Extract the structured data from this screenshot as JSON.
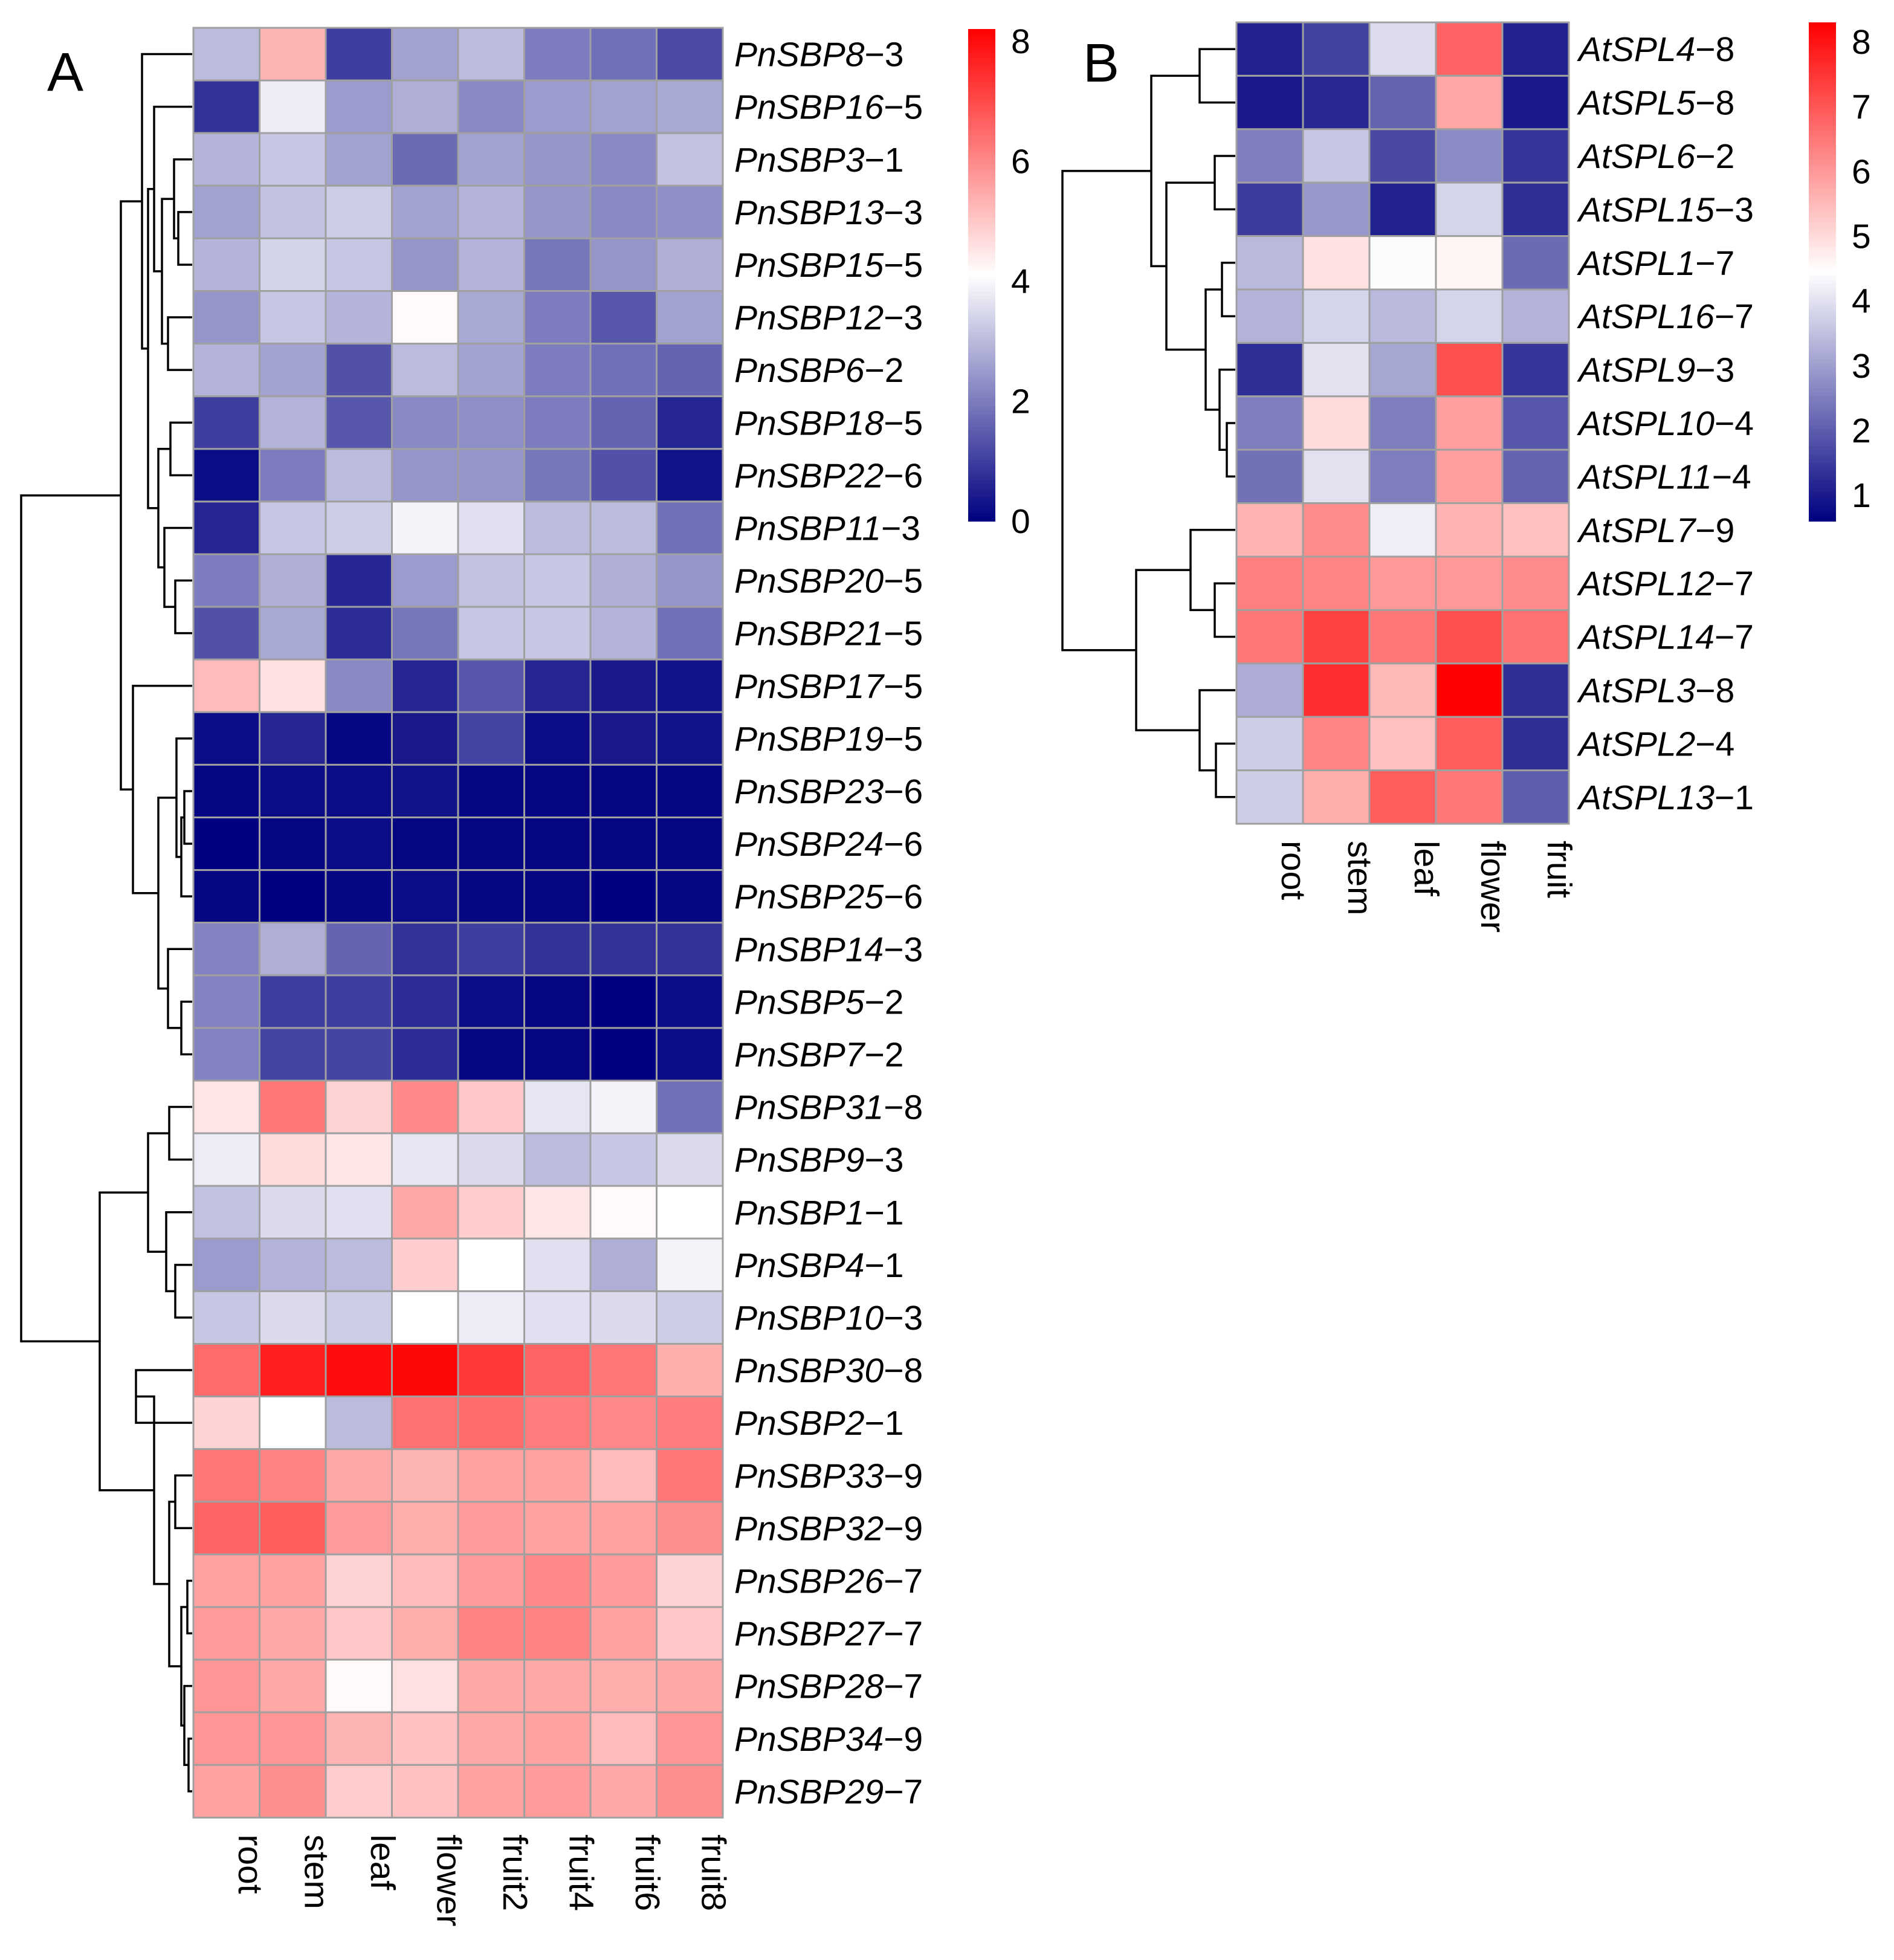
{
  "colors": {
    "low": "#000080",
    "mid": "#ffffff",
    "high": "#ff0000",
    "grid": "#a0a0a0",
    "tree": "#000000"
  },
  "chart_data": [
    {
      "panel": "A",
      "type": "heatmap",
      "columns": [
        "root",
        "stem",
        "leaf",
        "flower",
        "fruit2",
        "fruit4",
        "fruit6",
        "fruit8"
      ],
      "rows": [
        {
          "gene": "PnSBP8",
          "suffix": "−3",
          "values": [
            3.0,
            5.3,
            1.0,
            2.6,
            3.0,
            2.0,
            1.8,
            1.2
          ]
        },
        {
          "gene": "PnSBP16",
          "suffix": "−5",
          "values": [
            0.8,
            3.8,
            2.5,
            2.8,
            2.2,
            2.5,
            2.6,
            2.7
          ]
        },
        {
          "gene": "PnSBP3",
          "suffix": "−1",
          "values": [
            2.9,
            3.2,
            2.6,
            1.7,
            2.6,
            2.4,
            2.2,
            3.1
          ]
        },
        {
          "gene": "PnSBP13",
          "suffix": "−3",
          "values": [
            2.6,
            3.1,
            3.3,
            2.6,
            2.9,
            2.4,
            2.2,
            2.3
          ]
        },
        {
          "gene": "PnSBP15",
          "suffix": "−5",
          "values": [
            2.9,
            3.4,
            3.2,
            2.4,
            2.9,
            1.9,
            2.4,
            2.8
          ]
        },
        {
          "gene": "PnSBP12",
          "suffix": "−3",
          "values": [
            2.4,
            3.2,
            2.9,
            4.2,
            2.7,
            2.0,
            1.4,
            2.6
          ]
        },
        {
          "gene": "PnSBP6",
          "suffix": "−2",
          "values": [
            2.9,
            2.6,
            1.3,
            3.0,
            2.6,
            2.0,
            1.8,
            1.6
          ]
        },
        {
          "gene": "PnSBP18",
          "suffix": "−5",
          "values": [
            1.0,
            2.9,
            1.4,
            2.2,
            2.3,
            2.0,
            1.6,
            0.6
          ]
        },
        {
          "gene": "PnSBP22",
          "suffix": "−6",
          "values": [
            0.2,
            2.0,
            3.0,
            2.4,
            2.4,
            1.9,
            1.3,
            0.3
          ]
        },
        {
          "gene": "PnSBP11",
          "suffix": "−3",
          "values": [
            0.6,
            3.2,
            3.3,
            3.9,
            3.6,
            3.0,
            3.0,
            1.8
          ]
        },
        {
          "gene": "PnSBP20",
          "suffix": "−5",
          "values": [
            2.0,
            2.8,
            0.6,
            2.5,
            3.1,
            3.2,
            2.8,
            2.4
          ]
        },
        {
          "gene": "PnSBP21",
          "suffix": "−5",
          "values": [
            1.3,
            2.7,
            0.7,
            1.9,
            3.2,
            3.2,
            2.9,
            1.8
          ]
        },
        {
          "gene": "PnSBP17",
          "suffix": "−5",
          "values": [
            5.2,
            4.6,
            2.2,
            0.6,
            1.4,
            0.6,
            0.4,
            0.3
          ]
        },
        {
          "gene": "PnSBP19",
          "suffix": "−5",
          "values": [
            0.2,
            0.6,
            0.1,
            0.4,
            1.1,
            0.2,
            0.4,
            0.3
          ]
        },
        {
          "gene": "PnSBP23",
          "suffix": "−6",
          "values": [
            0.1,
            0.2,
            0.2,
            0.3,
            0.1,
            0.1,
            0.1,
            0.1
          ]
        },
        {
          "gene": "PnSBP24",
          "suffix": "−6",
          "values": [
            0.0,
            0.1,
            0.2,
            0.1,
            0.1,
            0.1,
            0.1,
            0.1
          ]
        },
        {
          "gene": "PnSBP25",
          "suffix": "−6",
          "values": [
            0.1,
            0.0,
            0.1,
            0.2,
            0.1,
            0.1,
            0.0,
            0.1
          ]
        },
        {
          "gene": "PnSBP14",
          "suffix": "−3",
          "values": [
            2.1,
            2.8,
            1.6,
            0.8,
            1.0,
            0.8,
            0.8,
            0.8
          ]
        },
        {
          "gene": "PnSBP5",
          "suffix": "−2",
          "values": [
            2.1,
            1.0,
            1.0,
            0.7,
            0.2,
            0.1,
            0.0,
            0.2
          ]
        },
        {
          "gene": "PnSBP7",
          "suffix": "−2",
          "values": [
            2.1,
            1.1,
            1.1,
            0.7,
            0.1,
            0.1,
            0.0,
            0.2
          ]
        },
        {
          "gene": "PnSBP31",
          "suffix": "−8",
          "values": [
            4.5,
            6.3,
            4.8,
            6.0,
            5.0,
            3.7,
            3.9,
            1.8
          ]
        },
        {
          "gene": "PnSBP9",
          "suffix": "−3",
          "values": [
            3.8,
            4.7,
            4.5,
            3.7,
            3.5,
            3.0,
            3.2,
            3.5
          ]
        },
        {
          "gene": "PnSBP1",
          "suffix": "−1",
          "values": [
            3.1,
            3.5,
            3.6,
            5.5,
            4.9,
            4.5,
            4.2,
            4.1
          ]
        },
        {
          "gene": "PnSBP4",
          "suffix": "−1",
          "values": [
            2.5,
            2.9,
            3.0,
            4.9,
            4.1,
            3.6,
            2.8,
            3.9
          ]
        },
        {
          "gene": "PnSBP10",
          "suffix": "−3",
          "values": [
            3.2,
            3.5,
            3.3,
            4.1,
            3.8,
            3.6,
            3.5,
            3.3
          ]
        },
        {
          "gene": "PnSBP30",
          "suffix": "−8",
          "values": [
            6.5,
            7.7,
            8.0,
            8.1,
            7.3,
            6.6,
            6.3,
            5.4
          ]
        },
        {
          "gene": "PnSBP2",
          "suffix": "−1",
          "values": [
            4.8,
            4.1,
            3.0,
            6.4,
            6.5,
            6.2,
            6.0,
            6.2
          ]
        },
        {
          "gene": "PnSBP33",
          "suffix": "−9",
          "values": [
            6.3,
            6.1,
            5.5,
            5.3,
            5.6,
            5.6,
            5.2,
            6.3
          ]
        },
        {
          "gene": "PnSBP32",
          "suffix": "−9",
          "values": [
            6.6,
            6.7,
            5.7,
            5.4,
            5.7,
            5.6,
            5.6,
            5.9
          ]
        },
        {
          "gene": "PnSBP26",
          "suffix": "−7",
          "values": [
            5.6,
            5.6,
            4.8,
            5.2,
            5.7,
            6.0,
            5.7,
            4.8
          ]
        },
        {
          "gene": "PnSBP27",
          "suffix": "−7",
          "values": [
            5.7,
            5.5,
            5.0,
            5.4,
            6.1,
            6.1,
            5.6,
            5.0
          ]
        },
        {
          "gene": "PnSBP28",
          "suffix": "−7",
          "values": [
            5.8,
            5.5,
            4.2,
            4.6,
            5.5,
            5.5,
            5.4,
            5.5
          ]
        },
        {
          "gene": "PnSBP34",
          "suffix": "−9",
          "values": [
            5.8,
            5.8,
            5.3,
            5.1,
            5.5,
            5.6,
            5.2,
            5.8
          ]
        },
        {
          "gene": "PnSBP29",
          "suffix": "−7",
          "values": [
            5.6,
            5.9,
            4.9,
            5.1,
            5.6,
            5.7,
            5.5,
            5.9
          ]
        }
      ],
      "colorbar": {
        "min": 0,
        "max": 8.2,
        "ticks": [
          0,
          2,
          4,
          6,
          8
        ]
      }
    },
    {
      "panel": "B",
      "type": "heatmap",
      "columns": [
        "root",
        "stem",
        "leaf",
        "flower",
        "fruit"
      ],
      "rows": [
        {
          "gene": "AtSPL4",
          "suffix": "−8",
          "values": [
            1.1,
            1.6,
            3.9,
            6.8,
            1.1
          ]
        },
        {
          "gene": "AtSPL5",
          "suffix": "−8",
          "values": [
            1.0,
            1.2,
            2.1,
            5.8,
            1.0
          ]
        },
        {
          "gene": "AtSPL6",
          "suffix": "−2",
          "values": [
            2.5,
            3.6,
            1.7,
            2.7,
            1.4
          ]
        },
        {
          "gene": "AtSPL15",
          "suffix": "−3",
          "values": [
            1.5,
            2.9,
            1.1,
            3.8,
            1.3
          ]
        },
        {
          "gene": "AtSPL1",
          "suffix": "−7",
          "values": [
            3.4,
            4.9,
            4.4,
            4.6,
            2.2
          ]
        },
        {
          "gene": "AtSPL16",
          "suffix": "−7",
          "values": [
            3.3,
            3.8,
            3.4,
            3.8,
            3.3
          ]
        },
        {
          "gene": "AtSPL9",
          "suffix": "−3",
          "values": [
            1.3,
            4.0,
            3.1,
            7.1,
            1.4
          ]
        },
        {
          "gene": "AtSPL10",
          "suffix": "−4",
          "values": [
            2.5,
            5.0,
            2.5,
            5.9,
            1.9
          ]
        },
        {
          "gene": "AtSPL11",
          "suffix": "−4",
          "values": [
            2.3,
            4.0,
            2.5,
            5.9,
            2.1
          ]
        },
        {
          "gene": "AtSPL7",
          "suffix": "−9",
          "values": [
            5.6,
            6.2,
            4.2,
            5.6,
            5.4
          ]
        },
        {
          "gene": "AtSPL12",
          "suffix": "−7",
          "values": [
            6.4,
            6.3,
            6.0,
            6.0,
            6.2
          ]
        },
        {
          "gene": "AtSPL14",
          "suffix": "−7",
          "values": [
            6.5,
            7.3,
            6.5,
            7.1,
            6.6
          ]
        },
        {
          "gene": "AtSPL3",
          "suffix": "−8",
          "values": [
            3.2,
            7.6,
            5.5,
            8.3,
            1.3
          ]
        },
        {
          "gene": "AtSPL2",
          "suffix": "−4",
          "values": [
            3.7,
            6.3,
            5.4,
            6.9,
            1.3
          ]
        },
        {
          "gene": "AtSPL13",
          "suffix": "−1",
          "values": [
            3.7,
            5.7,
            6.9,
            6.5,
            2.0
          ]
        }
      ],
      "colorbar": {
        "min": 0.6,
        "max": 8.3,
        "ticks": [
          1,
          2,
          3,
          4,
          5,
          6,
          7,
          8
        ]
      }
    }
  ]
}
